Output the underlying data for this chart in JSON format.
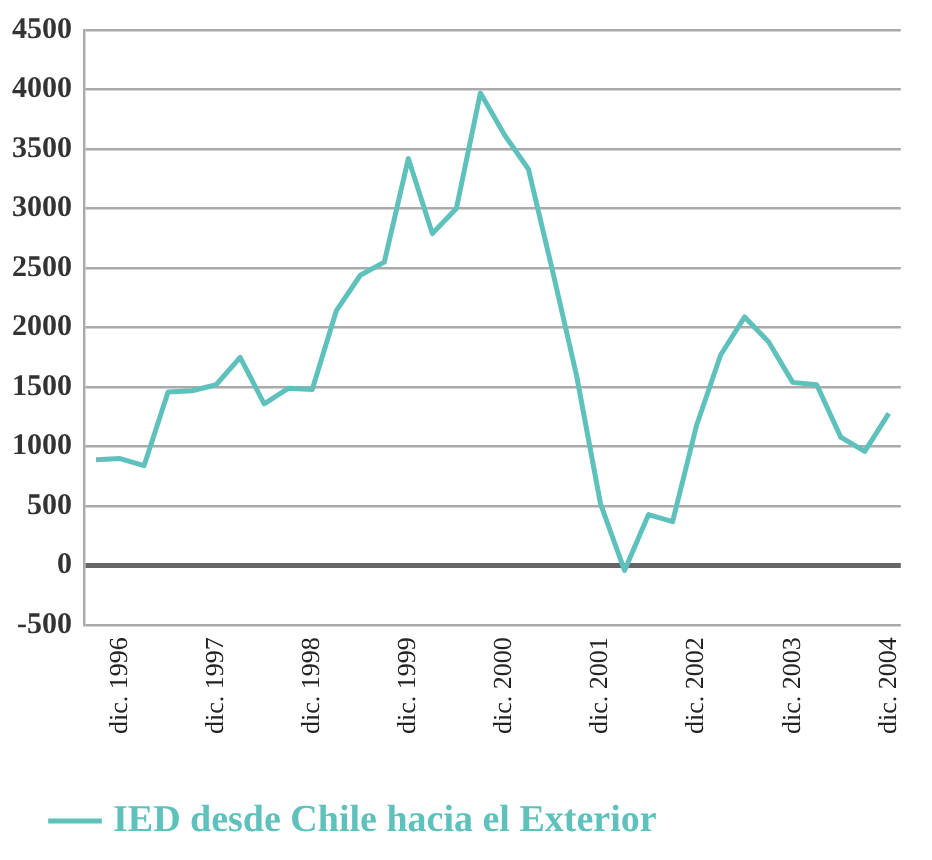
{
  "chart_data": {
    "type": "line",
    "categories": [
      null,
      "dic. 1996",
      null,
      null,
      null,
      "dic. 1997",
      null,
      null,
      null,
      "dic. 1998",
      null,
      null,
      null,
      "dic. 1999",
      null,
      null,
      null,
      "dic. 2000",
      null,
      null,
      null,
      "dic. 2001",
      null,
      null,
      null,
      "dic. 2002",
      null,
      null,
      null,
      "dic. 2003",
      null,
      null,
      null,
      "dic. 2004"
    ],
    "series": [
      {
        "name": "IED desde Chile hacia el Exterior",
        "color": "#5fc1bb",
        "values": [
          890,
          900,
          840,
          1460,
          1470,
          1520,
          1750,
          1360,
          1490,
          1480,
          2140,
          2440,
          2550,
          3420,
          2790,
          3000,
          3970,
          3620,
          3330,
          2480,
          1600,
          520,
          -40,
          430,
          370,
          1180,
          1770,
          2090,
          1880,
          1540,
          1520,
          1080,
          960,
          1280
        ]
      }
    ],
    "ylim": [
      -500,
      4500
    ],
    "yticks": [
      -500,
      0,
      500,
      1000,
      1500,
      2000,
      2500,
      3000,
      3500,
      4000,
      4500
    ],
    "grid": "y",
    "legend": "bottom left",
    "marker": "none",
    "line_style": "solid"
  }
}
